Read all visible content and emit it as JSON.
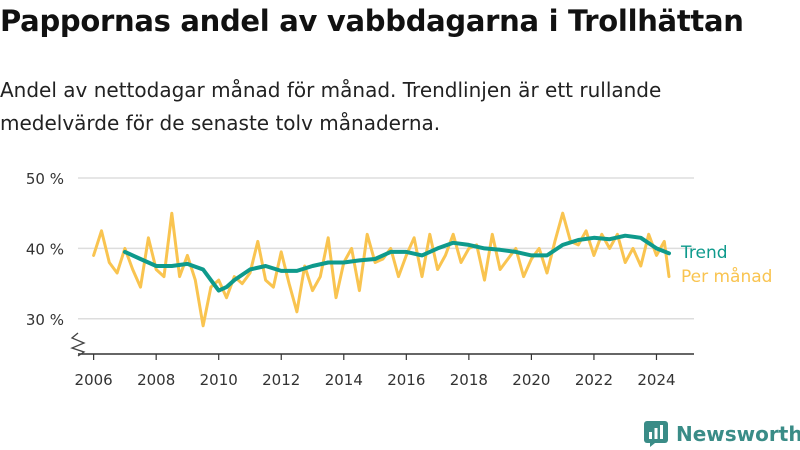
{
  "title": "Pappornas andel av vabbdagarna i Trollhättan",
  "subtitle": "Andel av nettodagar månad för månad. Trendlinjen är ett rullande medelvärde för de senaste tolv månaderna.",
  "brand": {
    "name": "Newsworthy",
    "icon": "newsworthy-logo-icon",
    "color": "#3a8c87"
  },
  "colors": {
    "trend": "#0e9a8c",
    "monthly": "#f9c450",
    "grid": "#dddddd",
    "axis": "#333333"
  },
  "chart_data": {
    "type": "line",
    "title": "Pappornas andel av vabbdagarna i Trollhättan",
    "xlabel": "",
    "ylabel": "",
    "xlim": [
      2005.5,
      2025.2
    ],
    "ylim": [
      25,
      50
    ],
    "y_ticks": [
      30,
      40,
      50
    ],
    "y_tick_labels": [
      "30 %",
      "40 %",
      "50 %"
    ],
    "x_ticks": [
      2006,
      2008,
      2010,
      2012,
      2014,
      2016,
      2018,
      2020,
      2022,
      2024
    ],
    "x_tick_labels": [
      "2006",
      "2008",
      "2010",
      "2012",
      "2014",
      "2016",
      "2018",
      "2020",
      "2022",
      "2024"
    ],
    "grid": true,
    "axis_break": true,
    "legend_position": "right",
    "series": [
      {
        "name": "Per månad",
        "color": "#f9c450",
        "x": [
          2006.0,
          2006.25,
          2006.5,
          2006.75,
          2007.0,
          2007.25,
          2007.5,
          2007.75,
          2008.0,
          2008.25,
          2008.5,
          2008.75,
          2009.0,
          2009.25,
          2009.5,
          2009.75,
          2010.0,
          2010.25,
          2010.5,
          2010.75,
          2011.0,
          2011.25,
          2011.5,
          2011.75,
          2012.0,
          2012.25,
          2012.5,
          2012.75,
          2013.0,
          2013.25,
          2013.5,
          2013.75,
          2014.0,
          2014.25,
          2014.5,
          2014.75,
          2015.0,
          2015.25,
          2015.5,
          2015.75,
          2016.0,
          2016.25,
          2016.5,
          2016.75,
          2017.0,
          2017.25,
          2017.5,
          2017.75,
          2018.0,
          2018.25,
          2018.5,
          2018.75,
          2019.0,
          2019.25,
          2019.5,
          2019.75,
          2020.0,
          2020.25,
          2020.5,
          2020.75,
          2021.0,
          2021.25,
          2021.5,
          2021.75,
          2022.0,
          2022.25,
          2022.5,
          2022.75,
          2023.0,
          2023.25,
          2023.5,
          2023.75,
          2024.0,
          2024.25,
          2024.4
        ],
        "y": [
          39,
          42.5,
          38,
          36.5,
          40,
          37,
          34.5,
          41.5,
          37,
          36,
          45,
          36,
          39,
          35.5,
          29,
          34.5,
          35.5,
          33,
          36,
          35,
          36.5,
          41,
          35.5,
          34.5,
          39.5,
          35,
          31,
          37.5,
          34,
          36,
          41.5,
          33,
          38,
          40,
          34,
          42,
          38,
          38.5,
          40,
          36,
          39,
          41.5,
          36,
          42,
          37,
          39,
          42,
          38,
          40,
          40.5,
          35.5,
          42,
          37,
          38.5,
          40,
          36,
          38.5,
          40,
          36.5,
          41,
          45,
          41,
          40.5,
          42.5,
          39,
          42,
          40,
          42,
          38,
          40,
          37.5,
          42,
          39,
          41,
          36
        ]
      },
      {
        "name": "Trend",
        "color": "#0e9a8c",
        "x": [
          2007.0,
          2007.5,
          2008.0,
          2008.5,
          2009.0,
          2009.5,
          2009.75,
          2010.0,
          2010.25,
          2010.5,
          2011.0,
          2011.5,
          2012.0,
          2012.5,
          2013.0,
          2013.5,
          2014.0,
          2014.5,
          2015.0,
          2015.5,
          2016.0,
          2016.5,
          2017.0,
          2017.5,
          2018.0,
          2018.5,
          2019.0,
          2019.5,
          2020.0,
          2020.5,
          2021.0,
          2021.5,
          2022.0,
          2022.5,
          2023.0,
          2023.5,
          2024.0,
          2024.4
        ],
        "y": [
          39.5,
          38.5,
          37.5,
          37.5,
          37.8,
          37,
          35.5,
          34,
          34.5,
          35.5,
          37,
          37.5,
          36.8,
          36.8,
          37.5,
          38,
          38,
          38.3,
          38.5,
          39.5,
          39.5,
          39,
          40,
          40.8,
          40.5,
          40,
          39.8,
          39.5,
          39,
          39,
          40.5,
          41.2,
          41.5,
          41.3,
          41.8,
          41.5,
          40,
          39.3
        ]
      }
    ]
  }
}
